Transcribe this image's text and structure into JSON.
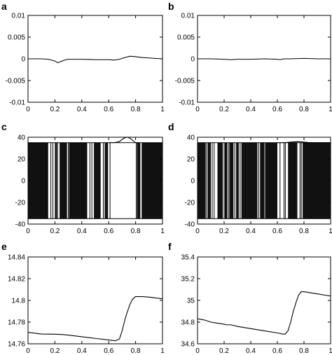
{
  "chart_data": [
    {
      "panel": "a",
      "type": "line",
      "xlim": [
        0,
        1
      ],
      "ylim": [
        -0.01,
        0.01
      ],
      "xticks": [
        0,
        0.2,
        0.4,
        0.6,
        0.8,
        1
      ],
      "xtick_labels": [
        "0",
        "0.2",
        "0.4",
        "0.6",
        "0.8",
        "1"
      ],
      "yticks": [
        -0.01,
        -0.005,
        0,
        0.005,
        0.01
      ],
      "ytick_labels": [
        "-0.01",
        "-0.005",
        "0",
        "0.005",
        "0.01"
      ],
      "series": [
        {
          "x": [
            0,
            0.05,
            0.1,
            0.15,
            0.2,
            0.22,
            0.24,
            0.27,
            0.3,
            0.4,
            0.5,
            0.6,
            0.64,
            0.68,
            0.72,
            0.76,
            0.8,
            0.85,
            0.9,
            0.95,
            1
          ],
          "y": [
            0,
            0,
            0,
            -0.0001,
            -0.0005,
            -0.0009,
            -0.0007,
            -0.0003,
            -0.0001,
            -0.0001,
            -0.0002,
            -0.0002,
            -0.0003,
            -0.0001,
            0.0003,
            0.0006,
            0.0005,
            0.0003,
            0.0002,
            0.0001,
            0
          ]
        }
      ]
    },
    {
      "panel": "b",
      "type": "line",
      "xlim": [
        0,
        1
      ],
      "ylim": [
        -0.01,
        0.01
      ],
      "xticks": [
        0,
        0.2,
        0.4,
        0.6,
        0.8,
        1
      ],
      "xtick_labels": [
        "0",
        "0.2",
        "0.4",
        "0.6",
        "0.8",
        "1"
      ],
      "yticks": [
        -0.01,
        -0.005,
        0,
        0.005,
        0.01
      ],
      "ytick_labels": [
        "-0.01",
        "-0.005",
        "0",
        "0.005",
        "0.01"
      ],
      "series": [
        {
          "x": [
            0,
            0.1,
            0.2,
            0.25,
            0.3,
            0.4,
            0.5,
            0.6,
            0.62,
            0.65,
            0.7,
            0.8,
            0.9,
            1
          ],
          "y": [
            0,
            0,
            -0.0001,
            -0.0002,
            -0.0001,
            -0.0001,
            0,
            -0.0001,
            -0.0002,
            0,
            0,
            0.0001,
            0,
            0
          ]
        }
      ]
    },
    {
      "panel": "c",
      "type": "line",
      "xlim": [
        0,
        1
      ],
      "ylim": [
        -40,
        40
      ],
      "xticks": [
        0,
        0.2,
        0.4,
        0.6,
        0.8,
        1
      ],
      "xtick_labels": [
        "0",
        "0.2",
        "0.4",
        "0.6",
        "0.8",
        "1"
      ],
      "yticks": [
        -40,
        -20,
        0,
        20,
        40
      ],
      "ytick_labels": [
        "-40",
        "-20",
        "0",
        "20",
        "40"
      ],
      "band_low": -35,
      "band_high": 35,
      "dense_intervals": [
        [
          0,
          0.15
        ],
        [
          0.2,
          0.215
        ],
        [
          0.235,
          0.29
        ],
        [
          0.305,
          0.44
        ],
        [
          0.49,
          0.54
        ],
        [
          0.57,
          0.595
        ],
        [
          0.81,
          0.835
        ],
        [
          0.845,
          1
        ]
      ],
      "sparse_switches": [
        0.17,
        0.185,
        0.22,
        0.3,
        0.46,
        0.475,
        0.56,
        0.61,
        0.805
      ],
      "series": [
        {
          "x": [
            0.6,
            0.64,
            0.68,
            0.7,
            0.72,
            0.74,
            0.76,
            0.78,
            0.8,
            0.82
          ],
          "y": [
            35,
            35,
            36,
            38,
            39.5,
            40,
            39,
            37,
            35,
            35
          ]
        }
      ]
    },
    {
      "panel": "d",
      "type": "line",
      "xlim": [
        0,
        1
      ],
      "ylim": [
        -40,
        40
      ],
      "xticks": [
        0,
        0.2,
        0.4,
        0.6,
        0.8,
        1
      ],
      "xtick_labels": [
        "0",
        "0.2",
        "0.4",
        "0.6",
        "0.8",
        "1"
      ],
      "yticks": [
        -40,
        -20,
        0,
        20,
        40
      ],
      "ytick_labels": [
        "-40",
        "-20",
        "0",
        "20",
        "40"
      ],
      "band_low": -35,
      "band_high": 35,
      "dense_intervals": [
        [
          0,
          0.06
        ],
        [
          0.075,
          0.1
        ],
        [
          0.15,
          0.19
        ],
        [
          0.205,
          0.225
        ],
        [
          0.24,
          0.27
        ],
        [
          0.29,
          0.31
        ],
        [
          0.33,
          0.45
        ],
        [
          0.47,
          0.5
        ],
        [
          0.51,
          0.6
        ],
        [
          0.68,
          0.75
        ],
        [
          0.79,
          1
        ]
      ],
      "sparse_switches": [
        0.065,
        0.11,
        0.125,
        0.2,
        0.235,
        0.28,
        0.32,
        0.46,
        0.505,
        0.62,
        0.65,
        0.66,
        0.77,
        0.78
      ],
      "series": [
        {
          "x": [
            0.6,
            0.65,
            0.7,
            0.75,
            0.8,
            0.85,
            0.9,
            1
          ],
          "y": [
            35,
            35,
            35.5,
            36,
            35.5,
            35,
            35,
            35
          ]
        }
      ]
    },
    {
      "panel": "e",
      "type": "line",
      "xlim": [
        0,
        1
      ],
      "ylim": [
        14.76,
        14.84
      ],
      "xticks": [
        0,
        0.2,
        0.4,
        0.6,
        0.8,
        1
      ],
      "xtick_labels": [
        "0",
        "0.2",
        "0.4",
        "0.6",
        "0.8",
        "1"
      ],
      "yticks": [
        14.76,
        14.78,
        14.8,
        14.82,
        14.84
      ],
      "ytick_labels": [
        "14.76",
        "14.78",
        "14.8",
        "14.82",
        "14.84"
      ],
      "series": [
        {
          "x": [
            0,
            0.05,
            0.1,
            0.2,
            0.25,
            0.3,
            0.4,
            0.5,
            0.6,
            0.65,
            0.68,
            0.7,
            0.72,
            0.74,
            0.76,
            0.78,
            0.8,
            0.85,
            0.9,
            0.95,
            1
          ],
          "y": [
            14.7705,
            14.7698,
            14.769,
            14.7688,
            14.7686,
            14.768,
            14.7665,
            14.765,
            14.7635,
            14.7628,
            14.7645,
            14.772,
            14.782,
            14.79,
            14.797,
            14.8015,
            14.8035,
            14.8035,
            14.803,
            14.8022,
            14.8015
          ]
        }
      ]
    },
    {
      "panel": "f",
      "type": "line",
      "xlim": [
        0,
        1
      ],
      "ylim": [
        34.6,
        35.4
      ],
      "xticks": [
        0,
        0.2,
        0.4,
        0.6,
        0.8,
        1
      ],
      "xtick_labels": [
        "0",
        "0.2",
        "0.4",
        "0.6",
        "0.8",
        "1"
      ],
      "yticks": [
        34.6,
        34.8,
        35,
        35.2,
        35.4
      ],
      "ytick_labels": [
        "34.6",
        "34.8",
        "35",
        "35.2",
        "35.4"
      ],
      "series": [
        {
          "x": [
            0,
            0.05,
            0.1,
            0.15,
            0.2,
            0.22,
            0.25,
            0.3,
            0.4,
            0.5,
            0.6,
            0.64,
            0.66,
            0.68,
            0.7,
            0.72,
            0.74,
            0.76,
            0.78,
            0.8,
            0.85,
            0.9,
            0.95,
            1
          ],
          "y": [
            34.83,
            34.82,
            34.8,
            34.79,
            34.78,
            34.775,
            34.775,
            34.76,
            34.74,
            34.72,
            34.7,
            34.69,
            34.69,
            34.72,
            34.8,
            34.9,
            34.98,
            35.05,
            35.08,
            35.08,
            35.07,
            35.06,
            35.05,
            35.04
          ]
        }
      ]
    }
  ]
}
